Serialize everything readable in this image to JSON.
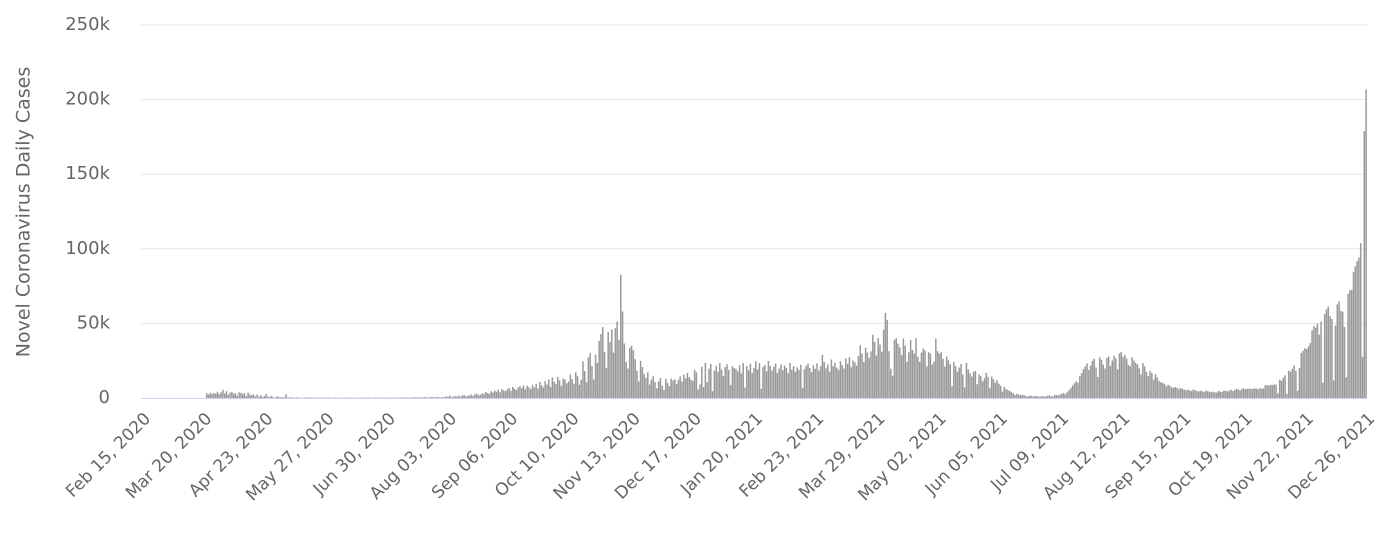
{
  "chart_data": {
    "type": "bar",
    "y_label": "Novel Coronavirus Daily Cases",
    "color": "#999999",
    "grid": true,
    "ylim": [
      0,
      250000
    ],
    "yticks": [
      0,
      {
        "value": 50000,
        "label": "50k"
      },
      {
        "value": 100000,
        "label": "100k"
      },
      {
        "value": 150000,
        "label": "150k"
      },
      {
        "value": 200000,
        "label": "200k"
      },
      {
        "value": 250000,
        "label": "250k"
      }
    ],
    "categories": [
      "Feb 15, 2020",
      null,
      null,
      null,
      null,
      null,
      null,
      null,
      null,
      null,
      null,
      null,
      null,
      null,
      null,
      null,
      null,
      null,
      null,
      null,
      null,
      null,
      null,
      null,
      null,
      null,
      null,
      null,
      null,
      null,
      null,
      null,
      null,
      null,
      "Mar 20, 2020",
      null,
      null,
      null,
      null,
      null,
      null,
      null,
      null,
      null,
      null,
      null,
      null,
      null,
      null,
      null,
      null,
      null,
      null,
      null,
      null,
      null,
      null,
      null,
      null,
      null,
      null,
      null,
      null,
      null,
      null,
      null,
      null,
      null,
      "Apr 23, 2020",
      null,
      null,
      null,
      null,
      null,
      null,
      null,
      null,
      null,
      null,
      null,
      null,
      null,
      null,
      null,
      null,
      null,
      null,
      null,
      null,
      null,
      null,
      null,
      null,
      null,
      null,
      null,
      null,
      null,
      null,
      null,
      null,
      null,
      "May 27, 2020",
      null,
      null,
      null,
      null,
      null,
      null,
      null,
      null,
      null,
      null,
      null,
      null,
      null,
      null,
      null,
      null,
      null,
      null,
      null,
      null,
      null,
      null,
      null,
      null,
      null,
      null,
      null,
      null,
      null,
      null,
      null,
      null,
      null,
      "Jun 30, 2020",
      null,
      null,
      null,
      null,
      null,
      null,
      null,
      null,
      null,
      null,
      null,
      null,
      null,
      null,
      null,
      null,
      null,
      null,
      null,
      null,
      null,
      null,
      null,
      null,
      null,
      null,
      null,
      null,
      null,
      null,
      null,
      null,
      null,
      "Aug 03, 2020",
      null,
      null,
      null,
      null,
      null,
      null,
      null,
      null,
      null,
      null,
      null,
      null,
      null,
      null,
      null,
      null,
      null,
      null,
      null,
      null,
      null,
      null,
      null,
      null,
      null,
      null,
      null,
      null,
      null,
      null,
      null,
      null,
      null,
      "Sep 06, 2020",
      null,
      null,
      null,
      null,
      null,
      null,
      null,
      null,
      null,
      null,
      null,
      null,
      null,
      null,
      null,
      null,
      null,
      null,
      null,
      null,
      null,
      null,
      null,
      null,
      null,
      null,
      null,
      null,
      null,
      null,
      null,
      null,
      null,
      "Oct 10, 2020",
      null,
      null,
      null,
      null,
      null,
      null,
      null,
      null,
      null,
      null,
      null,
      null,
      null,
      null,
      null,
      null,
      null,
      null,
      null,
      null,
      null,
      null,
      null,
      null,
      null,
      null,
      null,
      null,
      null,
      null,
      null,
      null,
      null,
      "Nov 13, 2020",
      null,
      null,
      null,
      null,
      null,
      null,
      null,
      null,
      null,
      null,
      null,
      null,
      null,
      null,
      null,
      null,
      null,
      null,
      null,
      null,
      null,
      null,
      null,
      null,
      null,
      null,
      null,
      null,
      null,
      null,
      null,
      null,
      null,
      "Dec 17, 2020",
      null,
      null,
      null,
      null,
      null,
      null,
      null,
      null,
      null,
      null,
      null,
      null,
      null,
      null,
      null,
      null,
      null,
      null,
      null,
      null,
      null,
      null,
      null,
      null,
      null,
      null,
      null,
      null,
      null,
      null,
      null,
      null,
      null,
      "Jan 20, 2021",
      null,
      null,
      null,
      null,
      null,
      null,
      null,
      null,
      null,
      null,
      null,
      null,
      null,
      null,
      null,
      null,
      null,
      null,
      null,
      null,
      null,
      null,
      null,
      null,
      null,
      null,
      null,
      null,
      null,
      null,
      null,
      null,
      null,
      "Feb 23, 2021",
      null,
      null,
      null,
      null,
      null,
      null,
      null,
      null,
      null,
      null,
      null,
      null,
      null,
      null,
      null,
      null,
      null,
      null,
      null,
      null,
      null,
      null,
      null,
      null,
      null,
      null,
      null,
      null,
      null,
      null,
      null,
      null,
      null,
      "Mar 29, 2021",
      null,
      null,
      null,
      null,
      null,
      null,
      null,
      null,
      null,
      null,
      null,
      null,
      null,
      null,
      null,
      null,
      null,
      null,
      null,
      null,
      null,
      null,
      null,
      null,
      null,
      null,
      null,
      null,
      null,
      null,
      null,
      null,
      null,
      "May 02, 2021",
      null,
      null,
      null,
      null,
      null,
      null,
      null,
      null,
      null,
      null,
      null,
      null,
      null,
      null,
      null,
      null,
      null,
      null,
      null,
      null,
      null,
      null,
      null,
      null,
      null,
      null,
      null,
      null,
      null,
      null,
      null,
      null,
      null,
      "Jun 05, 2021",
      null,
      null,
      null,
      null,
      null,
      null,
      null,
      null,
      null,
      null,
      null,
      null,
      null,
      null,
      null,
      null,
      null,
      null,
      null,
      null,
      null,
      null,
      null,
      null,
      null,
      null,
      null,
      null,
      null,
      null,
      null,
      null,
      null,
      "Jul 09, 2021",
      null,
      null,
      null,
      null,
      null,
      null,
      null,
      null,
      null,
      null,
      null,
      null,
      null,
      null,
      null,
      null,
      null,
      null,
      null,
      null,
      null,
      null,
      null,
      null,
      null,
      null,
      null,
      null,
      null,
      null,
      null,
      null,
      null,
      "Aug 12, 2021",
      null,
      null,
      null,
      null,
      null,
      null,
      null,
      null,
      null,
      null,
      null,
      null,
      null,
      null,
      null,
      null,
      null,
      null,
      null,
      null,
      null,
      null,
      null,
      null,
      null,
      null,
      null,
      null,
      null,
      null,
      null,
      null,
      null,
      "Sep 15, 2021",
      null,
      null,
      null,
      null,
      null,
      null,
      null,
      null,
      null,
      null,
      null,
      null,
      null,
      null,
      null,
      null,
      null,
      null,
      null,
      null,
      null,
      null,
      null,
      null,
      null,
      null,
      null,
      null,
      null,
      null,
      null,
      null,
      null,
      "Oct 19, 2021",
      null,
      null,
      null,
      null,
      null,
      null,
      null,
      null,
      null,
      null,
      null,
      null,
      null,
      null,
      null,
      null,
      null,
      null,
      null,
      null,
      null,
      null,
      null,
      null,
      null,
      null,
      null,
      null,
      null,
      null,
      null,
      null,
      null,
      "Nov 22, 2021",
      null,
      null,
      null,
      null,
      null,
      null,
      null,
      null,
      null,
      null,
      null,
      null,
      null,
      null,
      null,
      null,
      null,
      null,
      null,
      null,
      null,
      null,
      null,
      null,
      null,
      null,
      null,
      null,
      null,
      null,
      null,
      null,
      null,
      "Dec 26, 2021"
    ],
    "values": [
      0,
      0,
      0,
      0,
      0,
      0,
      0,
      0,
      0,
      0,
      0,
      0,
      0,
      0,
      0,
      0,
      0,
      0,
      0,
      0,
      0,
      0,
      0,
      0,
      0,
      0,
      0,
      0,
      0,
      0,
      0,
      0,
      0,
      0,
      0,
      0,
      3100,
      2400,
      3500,
      2800,
      3300,
      2900,
      4200,
      2600,
      3800,
      5500,
      3000,
      4600,
      2200,
      3600,
      4100,
      2900,
      3200,
      1500,
      3800,
      3400,
      2700,
      3100,
      1200,
      3500,
      2300,
      1800,
      2500,
      1000,
      2400,
      800,
      1900,
      600,
      1300,
      2800,
      900,
      600,
      1400,
      500,
      300,
      1100,
      700,
      400,
      600,
      300,
      2500,
      400,
      300,
      500,
      300,
      200,
      400,
      300,
      200,
      100,
      300,
      300,
      200,
      400,
      300,
      200,
      300,
      200,
      200,
      300,
      100,
      300,
      200,
      200,
      300,
      200,
      100,
      300,
      200,
      100,
      200,
      200,
      100,
      200,
      200,
      100,
      300,
      200,
      100,
      200,
      100,
      200,
      300,
      100,
      200,
      200,
      300,
      200,
      100,
      200,
      300,
      200,
      200,
      200,
      300,
      200,
      100,
      200,
      300,
      200,
      300,
      200,
      300,
      200,
      400,
      300,
      200,
      400,
      300,
      200,
      300,
      500,
      300,
      400,
      500,
      400,
      300,
      600,
      400,
      300,
      500,
      600,
      500,
      400,
      700,
      500,
      400,
      600,
      500,
      1200,
      800,
      1500,
      600,
      900,
      1300,
      1000,
      1600,
      900,
      1800,
      2000,
      1100,
      1500,
      1700,
      2300,
      1400,
      2600,
      2900,
      1800,
      2200,
      3100,
      2600,
      4000,
      3300,
      2800,
      4500,
      3700,
      4900,
      4200,
      5600,
      3800,
      6100,
      5200,
      4600,
      5900,
      6800,
      4900,
      7400,
      6200,
      5300,
      7100,
      7900,
      6500,
      8400,
      5800,
      8200,
      7300,
      6000,
      8800,
      7100,
      9500,
      6400,
      10800,
      8600,
      7200,
      11300,
      9000,
      12400,
      7500,
      13800,
      10900,
      9300,
      14200,
      11800,
      8200,
      13000,
      12500,
      9800,
      11000,
      15800,
      12700,
      9600,
      17200,
      14800,
      8900,
      12300,
      24600,
      18000,
      10500,
      27300,
      30200,
      21500,
      12400,
      29000,
      23500,
      38200,
      42800,
      47500,
      31000,
      20000,
      44200,
      37600,
      45900,
      30400,
      46800,
      51200,
      39000,
      82500,
      58000,
      36500,
      24100,
      19800,
      33600,
      35000,
      32000,
      26000,
      18200,
      11000,
      24900,
      20800,
      16000,
      13500,
      17200,
      9000,
      12300,
      14600,
      10700,
      6500,
      11200,
      13400,
      8300,
      5400,
      12800,
      10100,
      7800,
      13000,
      11800,
      12600,
      9400,
      12200,
      14500,
      11000,
      15600,
      13200,
      16800,
      14100,
      12400,
      11500,
      18900,
      17200,
      5800,
      9200,
      21000,
      7300,
      23600,
      10500,
      19700,
      22800,
      4500,
      18300,
      21500,
      17600,
      23400,
      19200,
      14800,
      20700,
      22600,
      18900,
      8600,
      21300,
      20100,
      19500,
      17800,
      21900,
      16500,
      23400,
      7000,
      21400,
      18600,
      22900,
      16800,
      20300,
      24700,
      19100,
      23400,
      6200,
      20800,
      22100,
      17900,
      24800,
      21500,
      18400,
      20900,
      23100,
      16900,
      19700,
      22400,
      18700,
      21800,
      20200,
      16600,
      23500,
      19100,
      21400,
      17600,
      20500,
      18800,
      22300,
      6800,
      19400,
      21600,
      23000,
      20100,
      17300,
      21900,
      19600,
      23200,
      18500,
      21400,
      28900,
      24100,
      19900,
      22500,
      17700,
      25800,
      21300,
      23600,
      20400,
      18900,
      24700,
      22100,
      19800,
      26500,
      22800,
      27300,
      20600,
      25100,
      23900,
      21700,
      28100,
      35400,
      29800,
      24100,
      33700,
      30500,
      26900,
      31200,
      42300,
      37600,
      28400,
      40100,
      35800,
      30900,
      45700,
      57000,
      52200,
      31400,
      19600,
      14900,
      38800,
      40200,
      36400,
      33900,
      28700,
      39800,
      35100,
      24300,
      30600,
      38900,
      32200,
      29800,
      40100,
      27600,
      24100,
      30400,
      33100,
      31800,
      21200,
      30700,
      29900,
      22300,
      24500,
      39800,
      31400,
      29600,
      30700,
      26200,
      21100,
      27800,
      25300,
      22600,
      8000,
      24200,
      21300,
      17700,
      20400,
      22800,
      15800,
      7100,
      23600,
      19200,
      16600,
      14400,
      17600,
      18100,
      9200,
      15800,
      14700,
      11100,
      13300,
      16900,
      14200,
      6800,
      14400,
      12600,
      10300,
      11900,
      9600,
      8200,
      4200,
      7500,
      6100,
      5400,
      4800,
      3900,
      3200,
      2100,
      2800,
      2400,
      1900,
      2200,
      1800,
      1500,
      900,
      1600,
      1400,
      1100,
      1300,
      1200,
      1000,
      800,
      1400,
      1100,
      900,
      1500,
      1700,
      1300,
      1000,
      1900,
      2100,
      1600,
      2400,
      2800,
      3300,
      2600,
      3900,
      5200,
      6800,
      8400,
      9900,
      11200,
      10300,
      14600,
      16800,
      19300,
      21200,
      23100,
      18700,
      21800,
      24900,
      26200,
      20400,
      14100,
      27300,
      25600,
      22400,
      19800,
      26900,
      27800,
      21500,
      25100,
      28300,
      26600,
      19200,
      29900,
      30800,
      27600,
      28900,
      26400,
      22100,
      21300,
      27400,
      25200,
      23700,
      22600,
      19900,
      15800,
      23500,
      21200,
      17400,
      14600,
      18100,
      16700,
      12300,
      15900,
      13800,
      11400,
      10600,
      10200,
      9400,
      7800,
      8900,
      8300,
      7100,
      6900,
      7400,
      6800,
      5900,
      6600,
      6200,
      5500,
      5300,
      5600,
      5100,
      4600,
      5800,
      5200,
      4700,
      4400,
      4900,
      4500,
      4100,
      5000,
      4600,
      4300,
      3900,
      4200,
      3800,
      3600,
      4700,
      4300,
      4000,
      5100,
      4800,
      4400,
      5000,
      5600,
      4700,
      5400,
      6100,
      5800,
      5200,
      6100,
      6400,
      5900,
      6200,
      6300,
      6000,
      6100,
      6500,
      6300,
      5800,
      6600,
      6200,
      6400,
      8500,
      8800,
      8300,
      8900,
      8600,
      9100,
      9000,
      3100,
      12300,
      11600,
      13500,
      15200,
      2800,
      18300,
      17700,
      19500,
      21800,
      18100,
      4900,
      20200,
      30200,
      31600,
      33400,
      32800,
      34600,
      36800,
      45400,
      48100,
      47200,
      49800,
      42500,
      51300,
      10300,
      56400,
      59500,
      61200,
      54800,
      52900,
      11800,
      48600,
      62700,
      64800,
      58300,
      57900,
      47600,
      13900,
      69800,
      72100,
      72500,
      84500,
      88300,
      91800,
      94200,
      103800,
      27600,
      178900,
      206800
    ]
  }
}
